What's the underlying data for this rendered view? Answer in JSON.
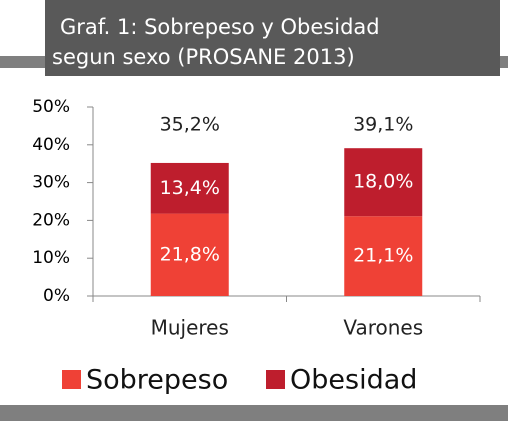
{
  "chart_data": {
    "type": "stacked_bar",
    "title": [
      "Graf. 1: Sobrepeso y Obesidad",
      "segun sexo (PROSANE 2013)"
    ],
    "categories": [
      "Mujeres",
      "Varones"
    ],
    "series": [
      {
        "name": "Sobrepeso",
        "color": "#ef4136",
        "values": [
          21.8,
          21.1
        ],
        "value_labels": [
          "21,8%",
          "21,1%"
        ]
      },
      {
        "name": "Obesidad",
        "color": "#be1e2d",
        "values": [
          13.4,
          18.0
        ],
        "value_labels": [
          "13,4%",
          "18,0%"
        ]
      }
    ],
    "total_labels": [
      "35,2%",
      "39,1%"
    ],
    "ylim": [
      0,
      50
    ],
    "yticks": [
      {
        "value": 0,
        "label": "0%"
      },
      {
        "value": 10,
        "label": "10%"
      },
      {
        "value": 20,
        "label": "20%"
      },
      {
        "value": 30,
        "label": "30%"
      },
      {
        "value": 40,
        "label": "40%"
      },
      {
        "value": 50,
        "label": "50%"
      }
    ],
    "legend": "bottom"
  }
}
